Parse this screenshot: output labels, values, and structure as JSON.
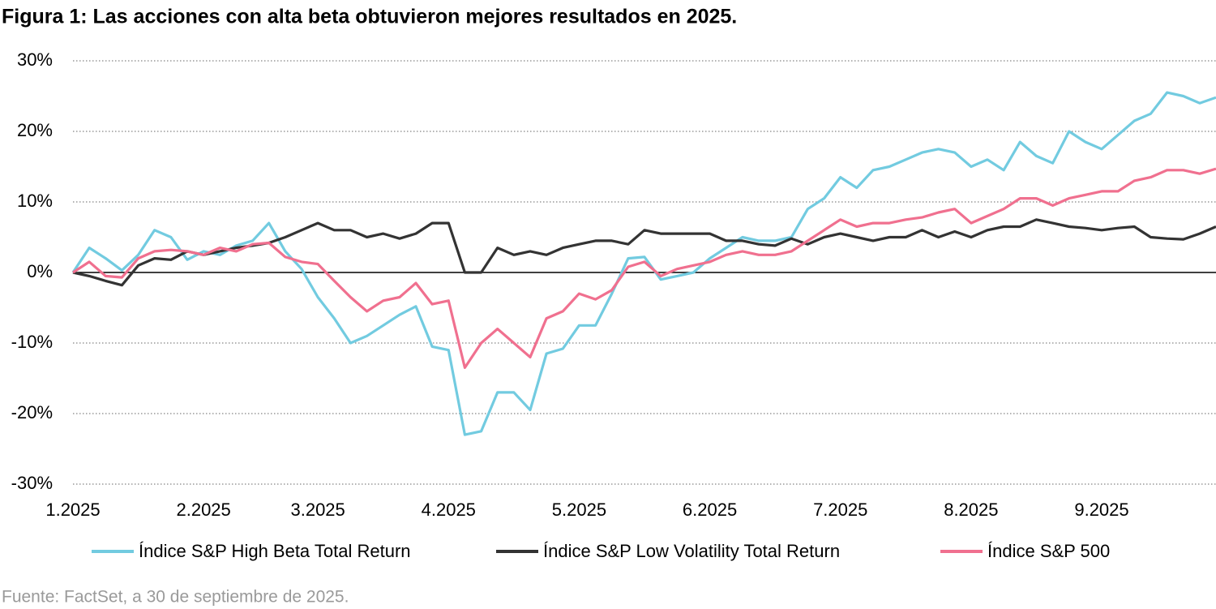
{
  "chart_data": {
    "type": "line",
    "title": "Figura 1: Las acciones con alta beta obtuvieron mejores resultados en 2025.",
    "source": "Fuente: FactSet, a 30 de septiembre de 2025.",
    "categories": [
      "1.2025",
      null,
      null,
      null,
      null,
      null,
      null,
      null,
      "2.2025",
      null,
      null,
      null,
      null,
      null,
      null,
      "3.2025",
      null,
      null,
      null,
      null,
      null,
      null,
      null,
      "4.2025",
      null,
      null,
      null,
      null,
      null,
      null,
      null,
      "5.2025",
      null,
      null,
      null,
      null,
      null,
      null,
      null,
      "6.2025",
      null,
      null,
      null,
      null,
      null,
      null,
      null,
      "7.2025",
      null,
      null,
      null,
      null,
      null,
      null,
      null,
      "8.2025",
      null,
      null,
      null,
      null,
      null,
      null,
      null,
      "9.2025",
      null,
      null,
      null,
      null,
      null,
      null,
      null
    ],
    "series": [
      {
        "name": "Índice S&P High Beta Total Return",
        "color": "#72cbe0",
        "values": [
          0,
          3.5,
          2,
          0.3,
          2.5,
          6,
          5,
          1.8,
          3,
          2.5,
          3.8,
          4.5,
          7,
          3,
          0.5,
          -3.5,
          -6.5,
          -10,
          -9,
          -7.5,
          -6,
          -4.8,
          -10.5,
          -11,
          -23,
          -22.5,
          -17,
          -17,
          -19.5,
          -11.5,
          -10.8,
          -7.5,
          -7.5,
          -3,
          2,
          2.2,
          -1,
          -0.5,
          0,
          2,
          3.5,
          5,
          4.5,
          4.5,
          5,
          9,
          10.5,
          13.5,
          12,
          14.5,
          15,
          16,
          17,
          17.5,
          17,
          15,
          16,
          14.5,
          18.5,
          16.5,
          15.5,
          20,
          18.5,
          17.5,
          19.5,
          21.5,
          22.5,
          25.5,
          25,
          24,
          24.8
        ]
      },
      {
        "name": "Índice S&P Low Volatility Total Return",
        "color": "#333333",
        "values": [
          0,
          -0.5,
          -1.2,
          -1.8,
          1,
          2,
          1.8,
          3,
          2.5,
          3,
          3.5,
          3.8,
          4.2,
          5,
          6,
          7,
          6,
          6,
          5,
          5.5,
          4.8,
          5.5,
          7,
          7,
          0,
          0,
          3.5,
          2.5,
          3,
          2.5,
          3.5,
          4,
          4.5,
          4.5,
          4,
          6,
          5.5,
          5.5,
          5.5,
          5.5,
          4.5,
          4.5,
          4,
          3.8,
          4.8,
          4,
          5,
          5.5,
          5,
          4.5,
          5,
          5,
          6,
          5,
          5.8,
          5,
          6,
          6.5,
          6.5,
          7.5,
          7,
          6.5,
          6.3,
          6,
          6.3,
          6.5,
          5,
          4.8,
          4.7,
          5.5,
          6.5
        ]
      },
      {
        "name": "Índice S&P 500",
        "color": "#f0708f",
        "values": [
          0,
          1.5,
          -0.5,
          -0.7,
          2,
          3,
          3.2,
          3,
          2.5,
          3.5,
          3,
          4,
          4.2,
          2.2,
          1.5,
          1.2,
          -1.2,
          -3.5,
          -5.5,
          -4,
          -3.5,
          -1.5,
          -4.5,
          -4,
          -13.5,
          -10,
          -8,
          -10,
          -12,
          -6.5,
          -5.5,
          -3,
          -3.8,
          -2.5,
          0.8,
          1.5,
          -0.5,
          0.5,
          1,
          1.5,
          2.5,
          3,
          2.5,
          2.5,
          3,
          4.5,
          6,
          7.5,
          6.5,
          7,
          7,
          7.5,
          7.8,
          8.5,
          9,
          7,
          8,
          9,
          10.5,
          10.5,
          9.5,
          10.5,
          11,
          11.5,
          11.5,
          13,
          13.5,
          14.5,
          14.5,
          14,
          14.7
        ]
      }
    ],
    "ylim": [
      -30,
      30
    ],
    "yticks": [
      {
        "value": -30,
        "label": "-30%"
      },
      {
        "value": -20,
        "label": "-20%"
      },
      {
        "value": -10,
        "label": "-10%"
      },
      {
        "value": 0,
        "label": "0%"
      },
      {
        "value": 10,
        "label": "10%"
      },
      {
        "value": 20,
        "label": "20%"
      },
      {
        "value": 30,
        "label": "30%"
      }
    ],
    "grid": true,
    "legend": "bottom"
  }
}
